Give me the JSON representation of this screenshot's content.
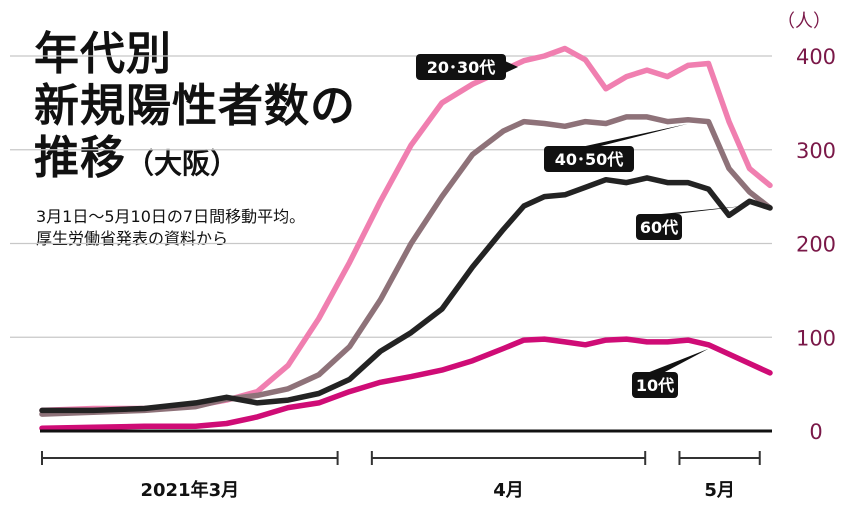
{
  "title": {
    "line1": "年代別",
    "line2": "新規陽性者数の",
    "line3": "推移",
    "line3_suffix": "（大阪）"
  },
  "subtitle": {
    "line1": "3月1日～5月10日の7日間移動平均。",
    "line2": "厚生労働省発表の資料から"
  },
  "colors": {
    "series_20_30": "#f07fb0",
    "series_40_50": "#8e7279",
    "series_60": "#232323",
    "series_10": "#cf0c76",
    "axis_label": "#7a1848",
    "gridline": "#c8c8c8",
    "baseline": "#111111"
  },
  "chart_data": {
    "type": "line",
    "x_unit": "day index from 2021-03-01 (0 = 3月1日, 70 = 5月10日)",
    "y_unit": "人",
    "ylim": [
      0,
      400
    ],
    "yticks": [
      0,
      100,
      200,
      300,
      400
    ],
    "ytick_labels": [
      "0",
      "100",
      "200",
      "300",
      "400"
    ],
    "grid": true,
    "x_periods": [
      {
        "label": "2021年3月",
        "start": 0,
        "end": 30
      },
      {
        "label": "4月",
        "start": 31,
        "end": 60
      },
      {
        "label": "5月",
        "start": 61,
        "end": 70
      }
    ],
    "series": [
      {
        "name": "20･30代",
        "color": "#f07fb0",
        "points": [
          [
            0,
            22
          ],
          [
            5,
            24
          ],
          [
            10,
            24
          ],
          [
            15,
            27
          ],
          [
            18,
            33
          ],
          [
            21,
            42
          ],
          [
            24,
            70
          ],
          [
            27,
            120
          ],
          [
            30,
            180
          ],
          [
            33,
            245
          ],
          [
            36,
            305
          ],
          [
            39,
            350
          ],
          [
            42,
            370
          ],
          [
            45,
            385
          ],
          [
            47,
            395
          ],
          [
            49,
            400
          ],
          [
            51,
            408
          ],
          [
            53,
            396
          ],
          [
            55,
            365
          ],
          [
            57,
            378
          ],
          [
            59,
            385
          ],
          [
            61,
            378
          ],
          [
            63,
            390
          ],
          [
            65,
            392
          ],
          [
            67,
            330
          ],
          [
            69,
            280
          ],
          [
            71,
            262
          ]
        ]
      },
      {
        "name": "40･50代",
        "color": "#8e7279",
        "points": [
          [
            0,
            18
          ],
          [
            5,
            20
          ],
          [
            10,
            22
          ],
          [
            15,
            26
          ],
          [
            18,
            34
          ],
          [
            21,
            38
          ],
          [
            24,
            45
          ],
          [
            27,
            60
          ],
          [
            30,
            90
          ],
          [
            33,
            140
          ],
          [
            36,
            200
          ],
          [
            39,
            250
          ],
          [
            42,
            295
          ],
          [
            45,
            320
          ],
          [
            47,
            330
          ],
          [
            49,
            328
          ],
          [
            51,
            325
          ],
          [
            53,
            330
          ],
          [
            55,
            328
          ],
          [
            57,
            335
          ],
          [
            59,
            335
          ],
          [
            61,
            330
          ],
          [
            63,
            332
          ],
          [
            65,
            330
          ],
          [
            67,
            280
          ],
          [
            69,
            255
          ],
          [
            71,
            238
          ]
        ]
      },
      {
        "name": "60代",
        "color": "#232323",
        "points": [
          [
            0,
            22
          ],
          [
            5,
            22
          ],
          [
            10,
            24
          ],
          [
            15,
            30
          ],
          [
            18,
            36
          ],
          [
            21,
            30
          ],
          [
            24,
            33
          ],
          [
            27,
            40
          ],
          [
            30,
            55
          ],
          [
            33,
            85
          ],
          [
            36,
            105
          ],
          [
            39,
            130
          ],
          [
            42,
            175
          ],
          [
            45,
            215
          ],
          [
            47,
            240
          ],
          [
            49,
            250
          ],
          [
            51,
            252
          ],
          [
            53,
            260
          ],
          [
            55,
            268
          ],
          [
            57,
            265
          ],
          [
            59,
            270
          ],
          [
            61,
            265
          ],
          [
            63,
            265
          ],
          [
            65,
            258
          ],
          [
            67,
            230
          ],
          [
            69,
            245
          ],
          [
            71,
            238
          ]
        ]
      },
      {
        "name": "10代",
        "color": "#cf0c76",
        "points": [
          [
            0,
            3
          ],
          [
            5,
            4
          ],
          [
            10,
            5
          ],
          [
            15,
            5
          ],
          [
            18,
            8
          ],
          [
            21,
            15
          ],
          [
            24,
            25
          ],
          [
            27,
            30
          ],
          [
            30,
            42
          ],
          [
            33,
            52
          ],
          [
            36,
            58
          ],
          [
            39,
            65
          ],
          [
            42,
            75
          ],
          [
            45,
            88
          ],
          [
            47,
            97
          ],
          [
            49,
            98
          ],
          [
            51,
            95
          ],
          [
            53,
            92
          ],
          [
            55,
            97
          ],
          [
            57,
            98
          ],
          [
            59,
            95
          ],
          [
            61,
            95
          ],
          [
            63,
            97
          ],
          [
            65,
            92
          ],
          [
            67,
            82
          ],
          [
            69,
            72
          ],
          [
            71,
            62
          ]
        ]
      }
    ]
  }
}
